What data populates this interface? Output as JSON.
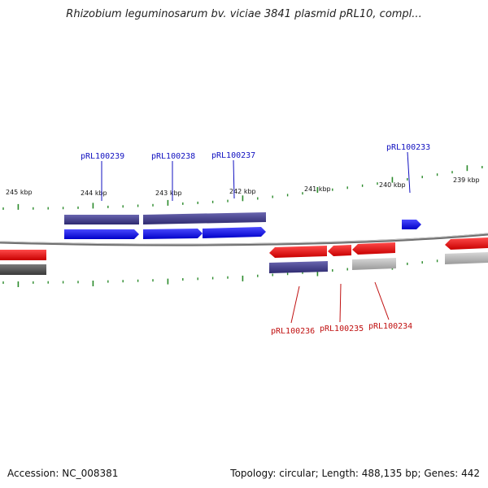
{
  "title": "Rhizobium leguminosarum bv. viciae 3841 plasmid pRL10, compl...",
  "accession": "Accession: NC_008381",
  "summary": "Topology: circular; Length: 488,135 bp; Genes: 442",
  "colors": {
    "forward_cds": "#1010e8",
    "reverse_cds": "#e81010",
    "forward_gene": "#3e3a8a",
    "reverse_gene_dark": "#555555",
    "reverse_gene_light": "#b5b5b5",
    "backbone": "#6f6f6f",
    "ticks": "#2a8a2a",
    "forward_label": "#1010c0",
    "reverse_label": "#c01010"
  },
  "kbp_labels": [
    "245 kbp",
    "244 kbp",
    "243 kbp",
    "242 kbp",
    "241 kbp",
    "240 kbp",
    "239 kbp"
  ],
  "gene_labels_forward": [
    "pRL100239",
    "pRL100238",
    "pRL100237",
    "pRL100233"
  ],
  "gene_labels_reverse": [
    "pRL100236",
    "pRL100235",
    "pRL100234"
  ]
}
